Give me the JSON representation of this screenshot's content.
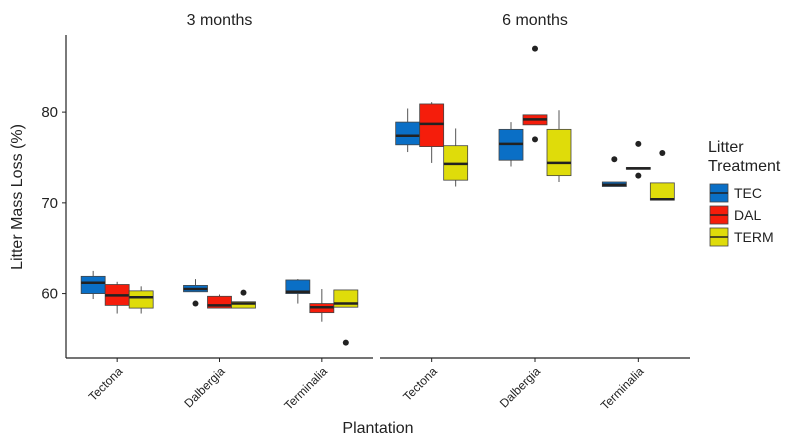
{
  "chart_data": {
    "type": "box",
    "ylabel": "Litter Mass Loss (%)",
    "xlabel": "Plantation",
    "legend_title": "Litter Treatment",
    "ylim": [
      52.9,
      88.5
    ],
    "yticks": [
      60,
      70,
      80
    ],
    "series": [
      {
        "name": "TEC",
        "color": "#0a6fc6"
      },
      {
        "name": "DAL",
        "color": "#f51d0b"
      },
      {
        "name": "TERM",
        "color": "#dfdc0a"
      }
    ],
    "facets": [
      {
        "title": "3 months",
        "categories": [
          "Tectona",
          "Dalbergia",
          "Terminalia"
        ],
        "boxes": [
          [
            {
              "min": 59.4,
              "q1": 60.0,
              "median": 61.2,
              "q3": 61.9,
              "max": 62.5,
              "outliers": []
            },
            {
              "min": 60.2,
              "q1": 60.2,
              "median": 60.5,
              "q3": 60.9,
              "max": 61.6,
              "outliers": [
                58.9
              ]
            },
            {
              "min": 58.9,
              "q1": 60.0,
              "median": 60.2,
              "q3": 61.5,
              "max": 61.6,
              "outliers": []
            }
          ],
          [
            {
              "min": 57.8,
              "q1": 58.7,
              "median": 59.8,
              "q3": 61.0,
              "max": 61.3,
              "outliers": []
            },
            {
              "min": 58.4,
              "q1": 58.4,
              "median": 58.7,
              "q3": 59.7,
              "max": 59.9,
              "outliers": []
            },
            {
              "min": 56.9,
              "q1": 57.9,
              "median": 58.5,
              "q3": 58.9,
              "max": 60.5,
              "outliers": []
            }
          ],
          [
            {
              "min": 57.8,
              "q1": 58.4,
              "median": 59.6,
              "q3": 60.3,
              "max": 60.8,
              "outliers": []
            },
            {
              "min": 58.4,
              "q1": 58.4,
              "median": 58.9,
              "q3": 59.1,
              "max": 59.1,
              "outliers": [
                60.1
              ]
            },
            {
              "min": 58.5,
              "q1": 58.5,
              "median": 58.9,
              "q3": 60.4,
              "max": 60.4,
              "outliers": [
                54.6
              ]
            }
          ]
        ]
      },
      {
        "title": "6 months",
        "categories": [
          "Tectona",
          "Dalbergia",
          "Terminalia"
        ],
        "boxes": [
          [
            {
              "min": 75.6,
              "q1": 76.4,
              "median": 77.4,
              "q3": 78.9,
              "max": 80.4,
              "outliers": []
            },
            {
              "min": 74.0,
              "q1": 74.7,
              "median": 76.5,
              "q3": 78.1,
              "max": 78.9,
              "outliers": []
            },
            {
              "min": 71.8,
              "q1": 71.8,
              "median": 72.0,
              "q3": 72.3,
              "max": 72.3,
              "outliers": [
                74.8
              ]
            }
          ],
          [
            {
              "min": 74.4,
              "q1": 76.2,
              "median": 78.7,
              "q3": 80.9,
              "max": 81.1,
              "outliers": []
            },
            {
              "min": 78.6,
              "q1": 78.6,
              "median": 79.2,
              "q3": 79.7,
              "max": 79.7,
              "outliers": [
                87.0,
                77.0
              ]
            },
            {
              "min": 73.7,
              "q1": 73.7,
              "median": 73.8,
              "q3": 73.9,
              "max": 73.9,
              "outliers": [
                76.5,
                73.0
              ]
            }
          ],
          [
            {
              "min": 71.8,
              "q1": 72.5,
              "median": 74.3,
              "q3": 76.3,
              "max": 78.2,
              "outliers": []
            },
            {
              "min": 72.3,
              "q1": 73.0,
              "median": 74.4,
              "q3": 78.1,
              "max": 80.2,
              "outliers": []
            },
            {
              "min": 70.3,
              "q1": 70.3,
              "median": 70.4,
              "q3": 72.2,
              "max": 72.2,
              "outliers": [
                75.5
              ]
            }
          ]
        ]
      }
    ]
  }
}
